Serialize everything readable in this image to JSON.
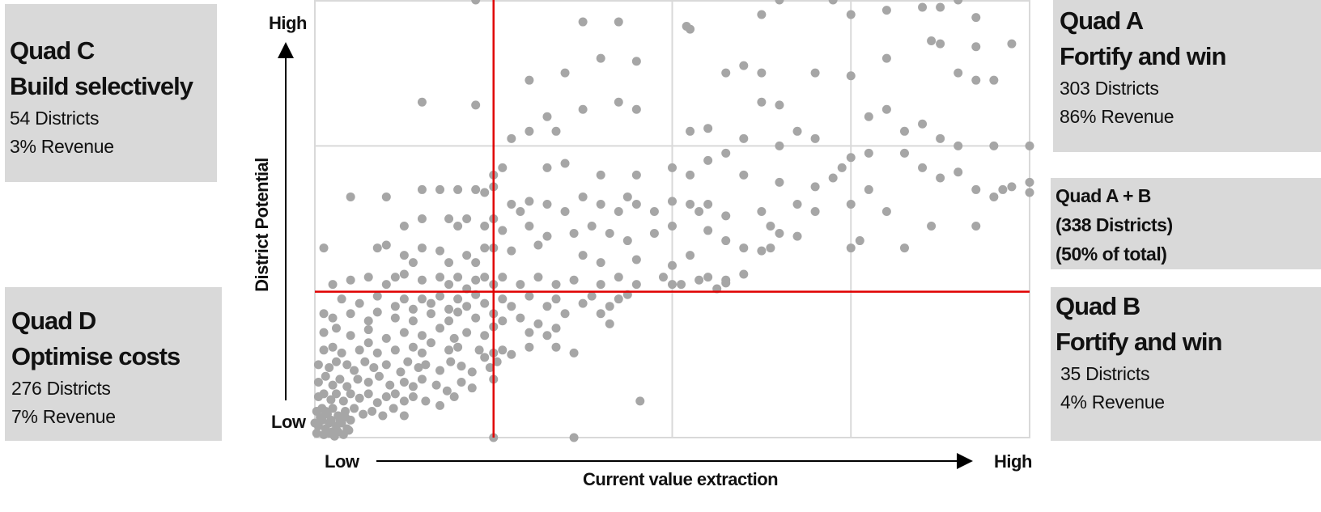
{
  "quadrants": {
    "c": {
      "title": "Quad C",
      "subtitle": "Build selectively",
      "districts": "54 Districts",
      "revenue": "3% Revenue"
    },
    "d": {
      "title": "Quad D",
      "subtitle": "Optimise costs",
      "districts": "276 Districts",
      "revenue": "7% Revenue"
    },
    "a": {
      "title": "Quad A",
      "subtitle": "Fortify and win",
      "districts": "303 Districts",
      "revenue": "86% Revenue"
    },
    "b": {
      "title": "Quad B",
      "subtitle": "Fortify and win",
      "districts": "35 Districts",
      "revenue": "4% Revenue"
    },
    "ab": {
      "title": "Quad A + B",
      "districts": "(338 Districts)",
      "share": "(50% of total)"
    }
  },
  "axes": {
    "y_label": "District Potential",
    "y_high": "High",
    "y_low": "Low",
    "x_label": "Current value extraction",
    "x_low": "Low",
    "x_high": "High"
  },
  "colors": {
    "points": "#a6a6a6",
    "threshold": "#e00000",
    "grid": "#d9d9d9",
    "box": "#d9d9d9"
  },
  "chart_data": {
    "type": "scatter",
    "xlim": [
      0,
      4
    ],
    "ylim": [
      0,
      3
    ],
    "grid": true,
    "thresholds": {
      "x": 1.0,
      "y": 1.0
    },
    "points": [
      [
        0.9,
        3.0
      ],
      [
        2.6,
        3.0
      ],
      [
        2.9,
        3.0
      ],
      [
        3.6,
        3.0
      ],
      [
        3.5,
        2.95
      ],
      [
        3.4,
        2.95
      ],
      [
        3.2,
        2.93
      ],
      [
        1.5,
        2.85
      ],
      [
        1.7,
        2.85
      ],
      [
        2.5,
        2.9
      ],
      [
        3.0,
        2.9
      ],
      [
        3.7,
        2.88
      ],
      [
        2.1,
        2.8
      ],
      [
        2.08,
        2.82
      ],
      [
        3.5,
        2.7
      ],
      [
        3.45,
        2.72
      ],
      [
        3.9,
        2.7
      ],
      [
        3.7,
        2.68
      ],
      [
        1.6,
        2.6
      ],
      [
        1.8,
        2.58
      ],
      [
        3.2,
        2.6
      ],
      [
        2.3,
        2.5
      ],
      [
        2.4,
        2.55
      ],
      [
        2.5,
        2.5
      ],
      [
        3.0,
        2.48
      ],
      [
        2.8,
        2.5
      ],
      [
        3.7,
        2.45
      ],
      [
        3.6,
        2.5
      ],
      [
        3.8,
        2.45
      ],
      [
        1.2,
        2.45
      ],
      [
        1.4,
        2.5
      ],
      [
        0.6,
        2.3
      ],
      [
        0.9,
        2.28
      ],
      [
        1.7,
        2.3
      ],
      [
        1.8,
        2.25
      ],
      [
        2.5,
        2.3
      ],
      [
        2.6,
        2.28
      ],
      [
        3.2,
        2.25
      ],
      [
        3.1,
        2.2
      ],
      [
        1.3,
        2.2
      ],
      [
        1.5,
        2.25
      ],
      [
        1.35,
        2.1
      ],
      [
        2.1,
        2.1
      ],
      [
        2.2,
        2.12
      ],
      [
        2.7,
        2.1
      ],
      [
        3.4,
        2.15
      ],
      [
        3.3,
        2.1
      ],
      [
        3.6,
        2.0
      ],
      [
        3.8,
        2.0
      ],
      [
        4.0,
        2.0
      ],
      [
        1.1,
        2.05
      ],
      [
        1.2,
        2.1
      ],
      [
        2.4,
        2.05
      ],
      [
        2.6,
        2.0
      ],
      [
        2.8,
        2.05
      ],
      [
        3.5,
        2.05
      ],
      [
        3.1,
        1.95
      ],
      [
        3.3,
        1.95
      ],
      [
        2.2,
        1.9
      ],
      [
        2.3,
        1.95
      ],
      [
        3.0,
        1.92
      ],
      [
        1.0,
        1.8
      ],
      [
        1.05,
        1.85
      ],
      [
        1.3,
        1.85
      ],
      [
        1.4,
        1.88
      ],
      [
        1.6,
        1.8
      ],
      [
        1.8,
        1.8
      ],
      [
        2.0,
        1.85
      ],
      [
        2.1,
        1.8
      ],
      [
        2.4,
        1.8
      ],
      [
        2.6,
        1.75
      ],
      [
        2.8,
        1.72
      ],
      [
        2.9,
        1.78
      ],
      [
        2.95,
        1.85
      ],
      [
        3.4,
        1.85
      ],
      [
        3.5,
        1.78
      ],
      [
        3.6,
        1.82
      ],
      [
        3.7,
        1.7
      ],
      [
        3.9,
        1.72
      ],
      [
        4.0,
        1.75
      ],
      [
        4.0,
        1.68
      ],
      [
        3.8,
        1.65
      ],
      [
        3.85,
        1.7
      ],
      [
        0.2,
        1.65
      ],
      [
        0.4,
        1.65
      ],
      [
        0.6,
        1.7
      ],
      [
        0.7,
        1.7
      ],
      [
        0.8,
        1.7
      ],
      [
        0.9,
        1.7
      ],
      [
        0.95,
        1.68
      ],
      [
        1.0,
        1.72
      ],
      [
        1.1,
        1.6
      ],
      [
        1.15,
        1.55
      ],
      [
        1.2,
        1.62
      ],
      [
        1.3,
        1.6
      ],
      [
        1.4,
        1.55
      ],
      [
        1.5,
        1.65
      ],
      [
        1.6,
        1.6
      ],
      [
        1.7,
        1.55
      ],
      [
        1.75,
        1.65
      ],
      [
        1.8,
        1.6
      ],
      [
        1.9,
        1.55
      ],
      [
        2.0,
        1.62
      ],
      [
        2.1,
        1.6
      ],
      [
        2.15,
        1.55
      ],
      [
        2.2,
        1.6
      ],
      [
        2.3,
        1.52
      ],
      [
        2.5,
        1.55
      ],
      [
        2.7,
        1.6
      ],
      [
        2.8,
        1.55
      ],
      [
        3.0,
        1.6
      ],
      [
        3.1,
        1.7
      ],
      [
        3.2,
        1.55
      ],
      [
        0.5,
        1.45
      ],
      [
        0.6,
        1.5
      ],
      [
        0.75,
        1.5
      ],
      [
        0.8,
        1.45
      ],
      [
        0.85,
        1.5
      ],
      [
        0.95,
        1.45
      ],
      [
        1.0,
        1.5
      ],
      [
        1.05,
        1.42
      ],
      [
        1.2,
        1.45
      ],
      [
        1.3,
        1.38
      ],
      [
        1.45,
        1.4
      ],
      [
        1.55,
        1.45
      ],
      [
        1.65,
        1.4
      ],
      [
        1.75,
        1.35
      ],
      [
        1.9,
        1.4
      ],
      [
        2.0,
        1.45
      ],
      [
        2.2,
        1.42
      ],
      [
        2.3,
        1.35
      ],
      [
        2.55,
        1.45
      ],
      [
        2.6,
        1.4
      ],
      [
        2.7,
        1.38
      ],
      [
        3.0,
        1.3
      ],
      [
        3.05,
        1.35
      ],
      [
        2.4,
        1.3
      ],
      [
        1.5,
        1.25
      ],
      [
        1.6,
        1.2
      ],
      [
        1.8,
        1.22
      ],
      [
        2.0,
        1.18
      ],
      [
        2.1,
        1.25
      ],
      [
        2.5,
        1.28
      ],
      [
        2.55,
        1.3
      ],
      [
        3.3,
        1.3
      ],
      [
        3.45,
        1.45
      ],
      [
        3.7,
        1.45
      ],
      [
        1.0,
        1.3
      ],
      [
        1.1,
        1.28
      ],
      [
        1.25,
        1.32
      ],
      [
        0.35,
        1.3
      ],
      [
        0.4,
        1.32
      ],
      [
        0.5,
        1.25
      ],
      [
        0.55,
        1.2
      ],
      [
        0.6,
        1.3
      ],
      [
        0.7,
        1.28
      ],
      [
        0.75,
        1.2
      ],
      [
        0.85,
        1.25
      ],
      [
        0.9,
        1.2
      ],
      [
        0.95,
        1.3
      ],
      [
        0.05,
        1.3
      ],
      [
        0.1,
        1.05
      ],
      [
        0.2,
        1.08
      ],
      [
        0.3,
        1.1
      ],
      [
        0.4,
        1.05
      ],
      [
        0.45,
        1.1
      ],
      [
        0.5,
        1.12
      ],
      [
        0.6,
        1.08
      ],
      [
        0.7,
        1.1
      ],
      [
        0.75,
        1.05
      ],
      [
        0.8,
        1.1
      ],
      [
        0.85,
        1.02
      ],
      [
        0.9,
        1.08
      ],
      [
        0.95,
        1.1
      ],
      [
        1.0,
        1.05
      ],
      [
        1.05,
        1.1
      ],
      [
        1.15,
        1.05
      ],
      [
        1.25,
        1.1
      ],
      [
        1.35,
        1.05
      ],
      [
        1.45,
        1.08
      ],
      [
        1.6,
        1.05
      ],
      [
        1.7,
        1.1
      ],
      [
        1.8,
        1.05
      ],
      [
        1.95,
        1.1
      ],
      [
        2.0,
        1.05
      ],
      [
        2.2,
        1.1
      ],
      [
        2.25,
        1.02
      ],
      [
        2.05,
        1.05
      ],
      [
        2.3,
        1.08
      ],
      [
        2.4,
        1.12
      ],
      [
        2.3,
        1.06
      ],
      [
        2.15,
        1.08
      ],
      [
        0.15,
        0.95
      ],
      [
        0.25,
        0.92
      ],
      [
        0.35,
        0.97
      ],
      [
        0.45,
        0.9
      ],
      [
        0.5,
        0.95
      ],
      [
        0.55,
        0.88
      ],
      [
        0.6,
        0.95
      ],
      [
        0.65,
        0.92
      ],
      [
        0.7,
        0.97
      ],
      [
        0.75,
        0.88
      ],
      [
        0.8,
        0.95
      ],
      [
        0.85,
        0.9
      ],
      [
        0.9,
        0.98
      ],
      [
        0.95,
        0.92
      ],
      [
        1.05,
        0.95
      ],
      [
        1.1,
        0.9
      ],
      [
        1.2,
        0.97
      ],
      [
        1.3,
        0.9
      ],
      [
        1.35,
        0.95
      ],
      [
        1.5,
        0.92
      ],
      [
        1.55,
        0.97
      ],
      [
        1.65,
        0.9
      ],
      [
        1.7,
        0.95
      ],
      [
        1.75,
        0.98
      ],
      [
        0.05,
        0.85
      ],
      [
        0.1,
        0.82
      ],
      [
        0.2,
        0.85
      ],
      [
        0.3,
        0.8
      ],
      [
        0.35,
        0.86
      ],
      [
        0.45,
        0.82
      ],
      [
        0.55,
        0.8
      ],
      [
        0.65,
        0.85
      ],
      [
        0.75,
        0.8
      ],
      [
        0.8,
        0.86
      ],
      [
        0.9,
        0.82
      ],
      [
        1.0,
        0.85
      ],
      [
        1.05,
        0.8
      ],
      [
        1.15,
        0.82
      ],
      [
        1.25,
        0.78
      ],
      [
        1.4,
        0.85
      ],
      [
        1.6,
        0.85
      ],
      [
        1.65,
        0.78
      ],
      [
        0.05,
        0.72
      ],
      [
        0.12,
        0.75
      ],
      [
        0.2,
        0.7
      ],
      [
        0.3,
        0.74
      ],
      [
        0.4,
        0.68
      ],
      [
        0.5,
        0.72
      ],
      [
        0.6,
        0.7
      ],
      [
        0.7,
        0.75
      ],
      [
        0.78,
        0.68
      ],
      [
        0.85,
        0.72
      ],
      [
        0.95,
        0.7
      ],
      [
        1.0,
        0.76
      ],
      [
        1.2,
        0.72
      ],
      [
        1.3,
        0.7
      ],
      [
        1.35,
        0.75
      ],
      [
        0.05,
        0.6
      ],
      [
        0.1,
        0.62
      ],
      [
        0.15,
        0.58
      ],
      [
        0.25,
        0.6
      ],
      [
        0.3,
        0.65
      ],
      [
        0.35,
        0.58
      ],
      [
        0.45,
        0.6
      ],
      [
        0.55,
        0.62
      ],
      [
        0.6,
        0.58
      ],
      [
        0.65,
        0.65
      ],
      [
        0.75,
        0.6
      ],
      [
        0.8,
        0.62
      ],
      [
        0.92,
        0.6
      ],
      [
        0.95,
        0.55
      ],
      [
        1.0,
        0.58
      ],
      [
        1.05,
        0.6
      ],
      [
        1.1,
        0.57
      ],
      [
        1.2,
        0.62
      ],
      [
        0.02,
        0.5
      ],
      [
        0.08,
        0.48
      ],
      [
        0.12,
        0.52
      ],
      [
        0.18,
        0.5
      ],
      [
        0.22,
        0.46
      ],
      [
        0.28,
        0.52
      ],
      [
        0.33,
        0.48
      ],
      [
        0.4,
        0.5
      ],
      [
        0.48,
        0.45
      ],
      [
        0.52,
        0.52
      ],
      [
        0.58,
        0.48
      ],
      [
        0.62,
        0.5
      ],
      [
        0.7,
        0.46
      ],
      [
        0.76,
        0.52
      ],
      [
        0.82,
        0.49
      ],
      [
        0.88,
        0.45
      ],
      [
        0.98,
        0.48
      ],
      [
        1.02,
        0.52
      ],
      [
        1.45,
        0.58
      ],
      [
        0.02,
        0.38
      ],
      [
        0.06,
        0.42
      ],
      [
        0.1,
        0.36
      ],
      [
        0.14,
        0.4
      ],
      [
        0.18,
        0.35
      ],
      [
        0.24,
        0.4
      ],
      [
        0.3,
        0.38
      ],
      [
        0.36,
        0.42
      ],
      [
        0.42,
        0.36
      ],
      [
        0.5,
        0.38
      ],
      [
        0.55,
        0.35
      ],
      [
        0.6,
        0.4
      ],
      [
        0.68,
        0.36
      ],
      [
        0.74,
        0.32
      ],
      [
        0.82,
        0.38
      ],
      [
        0.88,
        0.34
      ],
      [
        1.0,
        0.4
      ],
      [
        0.02,
        0.28
      ],
      [
        0.05,
        0.3
      ],
      [
        0.09,
        0.26
      ],
      [
        0.12,
        0.3
      ],
      [
        0.16,
        0.25
      ],
      [
        0.2,
        0.3
      ],
      [
        0.25,
        0.27
      ],
      [
        0.3,
        0.3
      ],
      [
        0.35,
        0.24
      ],
      [
        0.4,
        0.28
      ],
      [
        0.45,
        0.3
      ],
      [
        0.5,
        0.25
      ],
      [
        0.55,
        0.28
      ],
      [
        0.62,
        0.25
      ],
      [
        0.7,
        0.22
      ],
      [
        0.78,
        0.28
      ],
      [
        0.01,
        0.18
      ],
      [
        0.04,
        0.2
      ],
      [
        0.07,
        0.16
      ],
      [
        0.1,
        0.2
      ],
      [
        0.13,
        0.15
      ],
      [
        0.17,
        0.18
      ],
      [
        0.22,
        0.2
      ],
      [
        0.27,
        0.16
      ],
      [
        0.32,
        0.18
      ],
      [
        0.38,
        0.15
      ],
      [
        0.44,
        0.2
      ],
      [
        0.5,
        0.15
      ],
      [
        0.0,
        0.1
      ],
      [
        0.02,
        0.08
      ],
      [
        0.04,
        0.12
      ],
      [
        0.06,
        0.06
      ],
      [
        0.08,
        0.1
      ],
      [
        0.1,
        0.04
      ],
      [
        0.12,
        0.08
      ],
      [
        0.15,
        0.1
      ],
      [
        0.18,
        0.06
      ],
      [
        0.2,
        0.12
      ],
      [
        0.05,
        0.02
      ],
      [
        0.08,
        0.03
      ],
      [
        0.11,
        0.01
      ],
      [
        0.13,
        0.04
      ],
      [
        0.16,
        0.02
      ],
      [
        0.19,
        0.05
      ],
      [
        0.03,
        0.14
      ],
      [
        0.06,
        0.18
      ],
      [
        0.09,
        0.12
      ],
      [
        0.01,
        0.03
      ],
      [
        0.14,
        0.12
      ],
      [
        0.17,
        0.14
      ],
      [
        1.82,
        0.25
      ],
      [
        1.35,
        0.62
      ],
      [
        1.0,
        0.0
      ],
      [
        1.45,
        0.0
      ]
    ]
  }
}
